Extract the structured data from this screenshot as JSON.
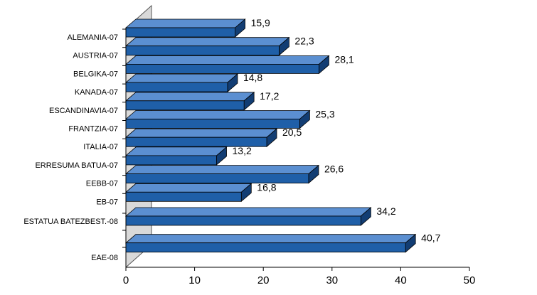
{
  "chart_data": {
    "type": "bar",
    "orientation": "horizontal",
    "style": "3d",
    "title": "",
    "xlabel": "",
    "ylabel": "",
    "xlim": [
      0,
      50
    ],
    "x_ticks": [
      "0",
      "10",
      "20",
      "30",
      "40",
      "50"
    ],
    "categories": [
      "ALEMANIA-07",
      "AUSTRIA-07",
      "BELGIKA-07",
      "KANADA-07",
      "ESCANDINAVIA-07",
      "FRANTZIA-07",
      "ITALIA-07",
      "ERRESUMA BATUA-07",
      "EEBB-07",
      "EB-07",
      "ESTATUA BATEZBEST.-08",
      "EAE-08"
    ],
    "values": [
      15.9,
      22.3,
      28.1,
      14.8,
      17.2,
      25.3,
      20.5,
      13.2,
      26.6,
      16.8,
      34.2,
      40.7
    ],
    "value_labels": [
      "15,9",
      "22,3",
      "28,1",
      "14,8",
      "17,2",
      "25,3",
      "20,5",
      "13,2",
      "26,6",
      "16,8",
      "34,2",
      "40,7"
    ],
    "grid": false,
    "legend": "none",
    "colors": {
      "bar_front": "#1f5fa8",
      "bar_top": "#5b8fd1",
      "bar_side": "#123d73",
      "wall": "#d9d9d9"
    }
  }
}
